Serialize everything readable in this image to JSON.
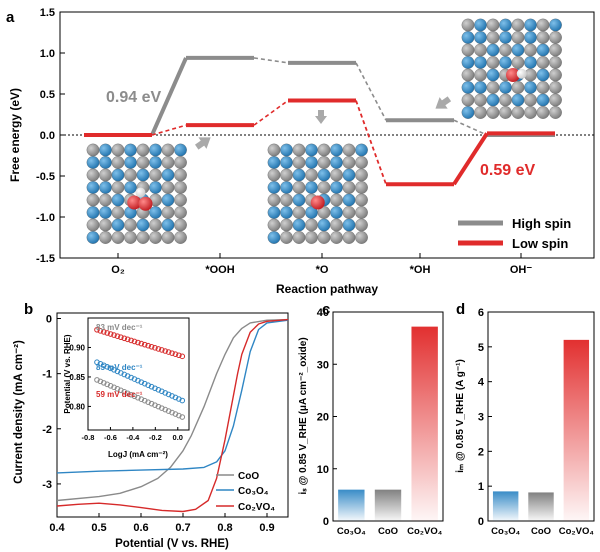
{
  "panel_letters": [
    "a",
    "b",
    "c",
    "d"
  ],
  "colors": {
    "high_spin": "#8c8c8c",
    "low_spin": "#e02b2b",
    "coo": "#8a8a8a",
    "co3o4": "#2f86c4",
    "co2vo4": "#d62a2a",
    "atom_grey": "#8d8d8d",
    "atom_blue": "#2a86c6",
    "atom_red": "#e0242a",
    "atom_white": "#f2f2f2"
  },
  "chart_data": [
    {
      "id": "a",
      "type": "line",
      "xlabel": "Reaction pathway",
      "ylabel": "Free energy (eV)",
      "ylim": [
        -1.5,
        1.5
      ],
      "yticks": [
        "-1.5",
        "-1.0",
        "-0.5",
        "0.0",
        "0.5",
        "1.0",
        "1.5"
      ],
      "categories": [
        "O₂",
        "*OOH",
        "*O",
        "*OH",
        "OH⁻"
      ],
      "series": [
        {
          "name": "High spin",
          "values": [
            0.0,
            0.94,
            0.88,
            0.18,
            0.0
          ]
        },
        {
          "name": "Low spin",
          "values": [
            0.0,
            0.12,
            0.42,
            -0.6,
            0.02
          ]
        }
      ],
      "annotations": [
        {
          "text": "0.94 eV",
          "series": "High spin"
        },
        {
          "text": "0.59 eV",
          "series": "Low spin"
        }
      ],
      "legend": "bottom-right"
    },
    {
      "id": "b",
      "type": "line",
      "xlabel": "Potential (V vs. RHE)",
      "ylabel": "Current density (mA cm⁻²)",
      "xlim": [
        0.4,
        0.95
      ],
      "ylim": [
        -3.6,
        0.1
      ],
      "xticks": [
        "0.4",
        "0.5",
        "0.6",
        "0.7",
        "0.8",
        "0.9"
      ],
      "yticks": [
        "-3",
        "-2",
        "-1",
        "0"
      ],
      "series": [
        {
          "name": "CoO",
          "x": [
            0.4,
            0.5,
            0.55,
            0.6,
            0.64,
            0.67,
            0.7,
            0.72,
            0.75,
            0.78,
            0.8,
            0.82,
            0.84,
            0.86,
            0.9,
            0.95
          ],
          "values": [
            -3.3,
            -3.23,
            -3.17,
            -3.05,
            -2.9,
            -2.7,
            -2.4,
            -2.12,
            -1.6,
            -1.0,
            -0.65,
            -0.35,
            -0.18,
            -0.08,
            -0.03,
            -0.02
          ]
        },
        {
          "name": "Co₃O₄",
          "x": [
            0.4,
            0.5,
            0.6,
            0.7,
            0.75,
            0.78,
            0.8,
            0.82,
            0.84,
            0.86,
            0.88,
            0.9,
            0.95
          ],
          "values": [
            -2.8,
            -2.77,
            -2.75,
            -2.73,
            -2.7,
            -2.6,
            -2.4,
            -1.95,
            -1.3,
            -0.6,
            -0.2,
            -0.08,
            -0.03
          ]
        },
        {
          "name": "Co₂VO₄",
          "x": [
            0.4,
            0.45,
            0.5,
            0.55,
            0.6,
            0.65,
            0.7,
            0.73,
            0.76,
            0.78,
            0.8,
            0.81,
            0.82,
            0.83,
            0.84,
            0.86,
            0.88,
            0.9,
            0.95
          ],
          "values": [
            -3.4,
            -3.37,
            -3.35,
            -3.38,
            -3.43,
            -3.48,
            -3.5,
            -3.46,
            -3.3,
            -2.9,
            -2.2,
            -1.8,
            -1.4,
            -1.0,
            -0.65,
            -0.25,
            -0.1,
            -0.05,
            -0.02
          ]
        }
      ],
      "legend": "bottom-right"
    },
    {
      "id": "b-inset",
      "type": "scatter",
      "xlabel": "LogJ (mA cm⁻²)",
      "ylabel": "Potential (V vs. RHE)",
      "xlim": [
        -0.8,
        0.1
      ],
      "ylim": [
        0.95,
        0.76
      ],
      "xticks": [
        "-0.8",
        "-0.6",
        "-0.4",
        "-0.2",
        "0.0"
      ],
      "yticks": [
        "0.80",
        "0.85",
        "0.90"
      ],
      "series": [
        {
          "name": "CoO",
          "slope_label": "83 mV dec⁻¹",
          "x0": -0.72,
          "x1": 0.04,
          "y0": 0.845,
          "y1": 0.782
        },
        {
          "name": "Co₃O₄",
          "slope_label": "85 mV dec⁻¹",
          "x0": -0.72,
          "x1": 0.04,
          "y0": 0.875,
          "y1": 0.81
        },
        {
          "name": "Co₂VO₄",
          "slope_label": "59 mV dec⁻¹",
          "x0": -0.72,
          "x1": 0.04,
          "y0": 0.93,
          "y1": 0.885
        }
      ]
    },
    {
      "id": "c",
      "type": "bar",
      "ylabel": "iₛ @ 0.85 V_RHE (μA cm⁻²_oxide)",
      "ylim": [
        0,
        40
      ],
      "yticks": [
        "0",
        "10",
        "20",
        "30",
        "40"
      ],
      "categories": [
        "Co₃O₄",
        "CoO",
        "Co₂VO₄"
      ],
      "values": [
        6,
        6,
        37.2
      ]
    },
    {
      "id": "d",
      "type": "bar",
      "ylabel": "iₘ @ 0.85 V_RHE (A g⁻¹)",
      "ylim": [
        0,
        6
      ],
      "yticks": [
        "0",
        "1",
        "2",
        "3",
        "4",
        "5",
        "6"
      ],
      "categories": [
        "Co₃O₄",
        "CoO",
        "Co₂VO₄"
      ],
      "values": [
        0.85,
        0.82,
        5.2
      ]
    }
  ]
}
